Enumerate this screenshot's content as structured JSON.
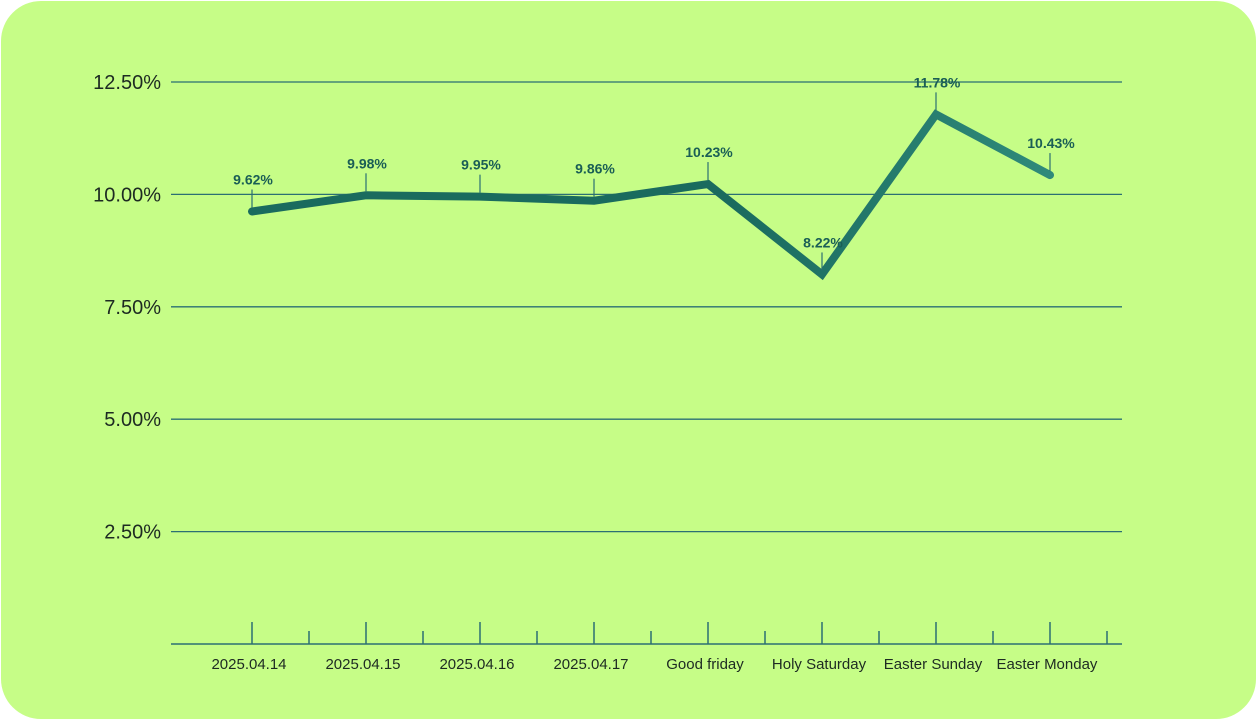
{
  "chart_data": {
    "type": "line",
    "categories": [
      "2025.04.14",
      "2025.04.15",
      "2025.04.16",
      "2025.04.17",
      "Good friday",
      "Holy Saturday",
      "Easter Sunday",
      "Easter Monday"
    ],
    "values": [
      9.62,
      9.98,
      9.95,
      9.86,
      10.23,
      8.22,
      11.78,
      10.43
    ],
    "data_labels": [
      "9.62%",
      "9.98%",
      "9.95%",
      "9.86%",
      "10.23%",
      "8.22%",
      "11.78%",
      "10.43%"
    ],
    "yticks": [
      "2.50%",
      "5.00%",
      "7.50%",
      "10.00%",
      "12.50%"
    ],
    "ytick_values": [
      2.5,
      5,
      7.5,
      10,
      12.5
    ],
    "ylim": [
      0,
      12.5
    ],
    "grid": true,
    "title": "",
    "xlabel": "",
    "ylabel": "",
    "colors": {
      "background": "#c6fd87",
      "line": "#1a6b5e",
      "line_end": "#2f8a7a",
      "grid": "#2b6f73",
      "label": "#1a5e55"
    }
  }
}
